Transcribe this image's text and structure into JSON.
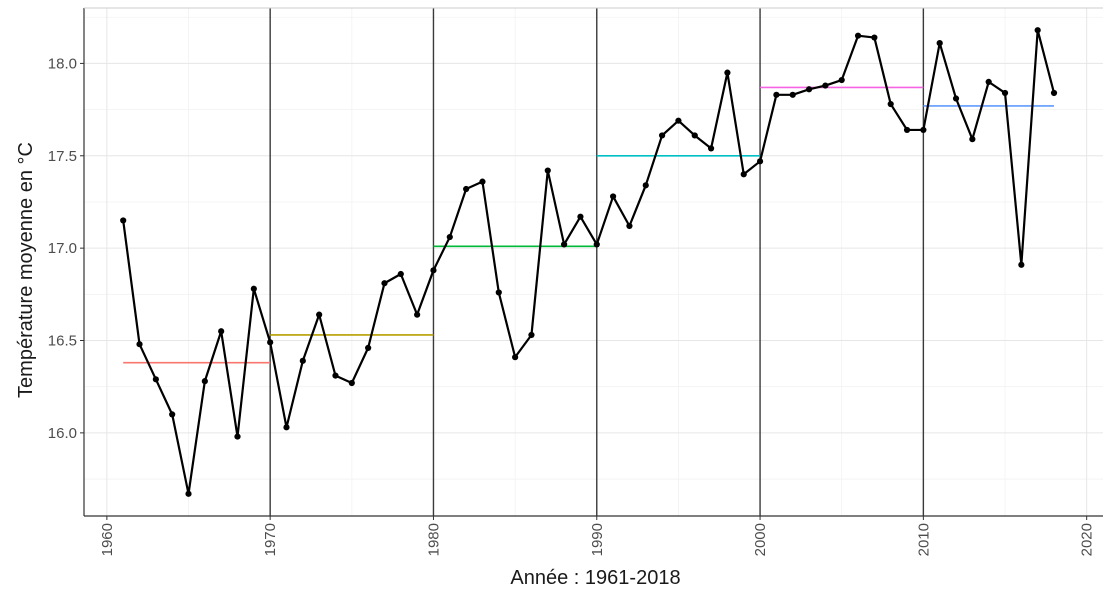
{
  "chart_data": {
    "type": "line",
    "xlabel": "Année : 1961-2018",
    "ylabel": "Température moyenne en °C",
    "xlim": [
      1958.6,
      2021.0
    ],
    "ylim": [
      15.55,
      18.3
    ],
    "x_ticks": [
      1960,
      1970,
      1980,
      1990,
      2000,
      2010,
      2020
    ],
    "x_tick_labels": [
      "1960",
      "1970",
      "1980",
      "1990",
      "2000",
      "2010",
      "2020"
    ],
    "y_ticks": [
      16.0,
      16.5,
      17.0,
      17.5,
      18.0
    ],
    "y_tick_labels": [
      "16.0",
      "16.5",
      "17.0",
      "17.5",
      "18.0"
    ],
    "grid": true,
    "decade_separators": [
      1970,
      1980,
      1990,
      2000,
      2010
    ],
    "series": [
      {
        "color": "#000000",
        "x": [
          1961,
          1962,
          1963,
          1964,
          1965,
          1966,
          1967,
          1968,
          1969,
          1970,
          1971,
          1972,
          1973,
          1974,
          1975,
          1976,
          1977,
          1978,
          1979,
          1980,
          1981,
          1982,
          1983,
          1984,
          1985,
          1986,
          1987,
          1988,
          1989,
          1990,
          1991,
          1992,
          1993,
          1994,
          1995,
          1996,
          1997,
          1998,
          1999,
          2000,
          2001,
          2002,
          2003,
          2004,
          2005,
          2006,
          2007,
          2008,
          2009,
          2010,
          2011,
          2012,
          2013,
          2014,
          2015,
          2016,
          2017,
          2018
        ],
        "y": [
          17.15,
          16.48,
          16.29,
          16.1,
          15.67,
          16.28,
          16.55,
          15.98,
          16.78,
          16.49,
          16.03,
          16.39,
          16.64,
          16.31,
          16.27,
          16.46,
          16.81,
          16.86,
          16.64,
          16.88,
          17.06,
          17.32,
          17.36,
          16.76,
          16.41,
          16.53,
          17.42,
          17.02,
          17.17,
          17.02,
          17.28,
          17.12,
          17.34,
          17.61,
          17.69,
          17.61,
          17.54,
          17.95,
          17.4,
          17.47,
          17.83,
          17.83,
          17.86,
          17.88,
          17.91,
          18.15,
          18.14,
          17.78,
          17.64,
          17.64,
          18.11,
          17.81,
          17.59,
          17.9,
          17.84,
          16.91,
          18.18,
          17.84
        ]
      }
    ],
    "decade_means": [
      {
        "x_start": 1961,
        "x_end": 1970,
        "value": 16.38,
        "color": "#f8766d"
      },
      {
        "x_start": 1970,
        "x_end": 1980,
        "value": 16.53,
        "color": "#b79f00"
      },
      {
        "x_start": 1980,
        "x_end": 1990,
        "value": 17.01,
        "color": "#00ba38"
      },
      {
        "x_start": 1990,
        "x_end": 2000,
        "value": 17.5,
        "color": "#00bfc4"
      },
      {
        "x_start": 2000,
        "x_end": 2010,
        "value": 17.87,
        "color": "#f564e3"
      },
      {
        "x_start": 2010,
        "x_end": 2018,
        "value": 17.77,
        "color": "#619cff"
      }
    ]
  }
}
